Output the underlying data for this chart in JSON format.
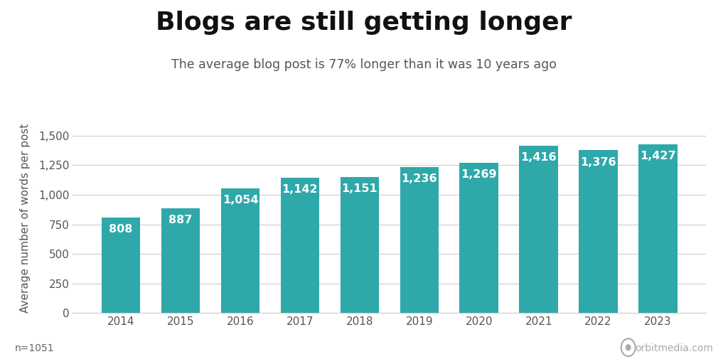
{
  "title": "Blogs are still getting longer",
  "subtitle": "The average blog post is 77% longer than it was 10 years ago",
  "years": [
    "2014",
    "2015",
    "2016",
    "2017",
    "2018",
    "2019",
    "2020",
    "2021",
    "2022",
    "2023"
  ],
  "values": [
    808,
    887,
    1054,
    1142,
    1151,
    1236,
    1269,
    1416,
    1376,
    1427
  ],
  "bar_color": "#2fa8aa",
  "ylabel": "Average number of words per post",
  "ylim": [
    0,
    1600
  ],
  "yticks": [
    0,
    250,
    500,
    750,
    1000,
    1250,
    1500
  ],
  "footnote": "n=1051",
  "watermark": "orbitmedia.com",
  "background_color": "#ffffff",
  "label_color": "#ffffff",
  "axis_color": "#555555",
  "grid_color": "#cccccc",
  "title_fontsize": 26,
  "subtitle_fontsize": 12.5,
  "bar_label_fontsize": 11.5,
  "ylabel_fontsize": 11,
  "tick_fontsize": 11,
  "footnote_fontsize": 10
}
